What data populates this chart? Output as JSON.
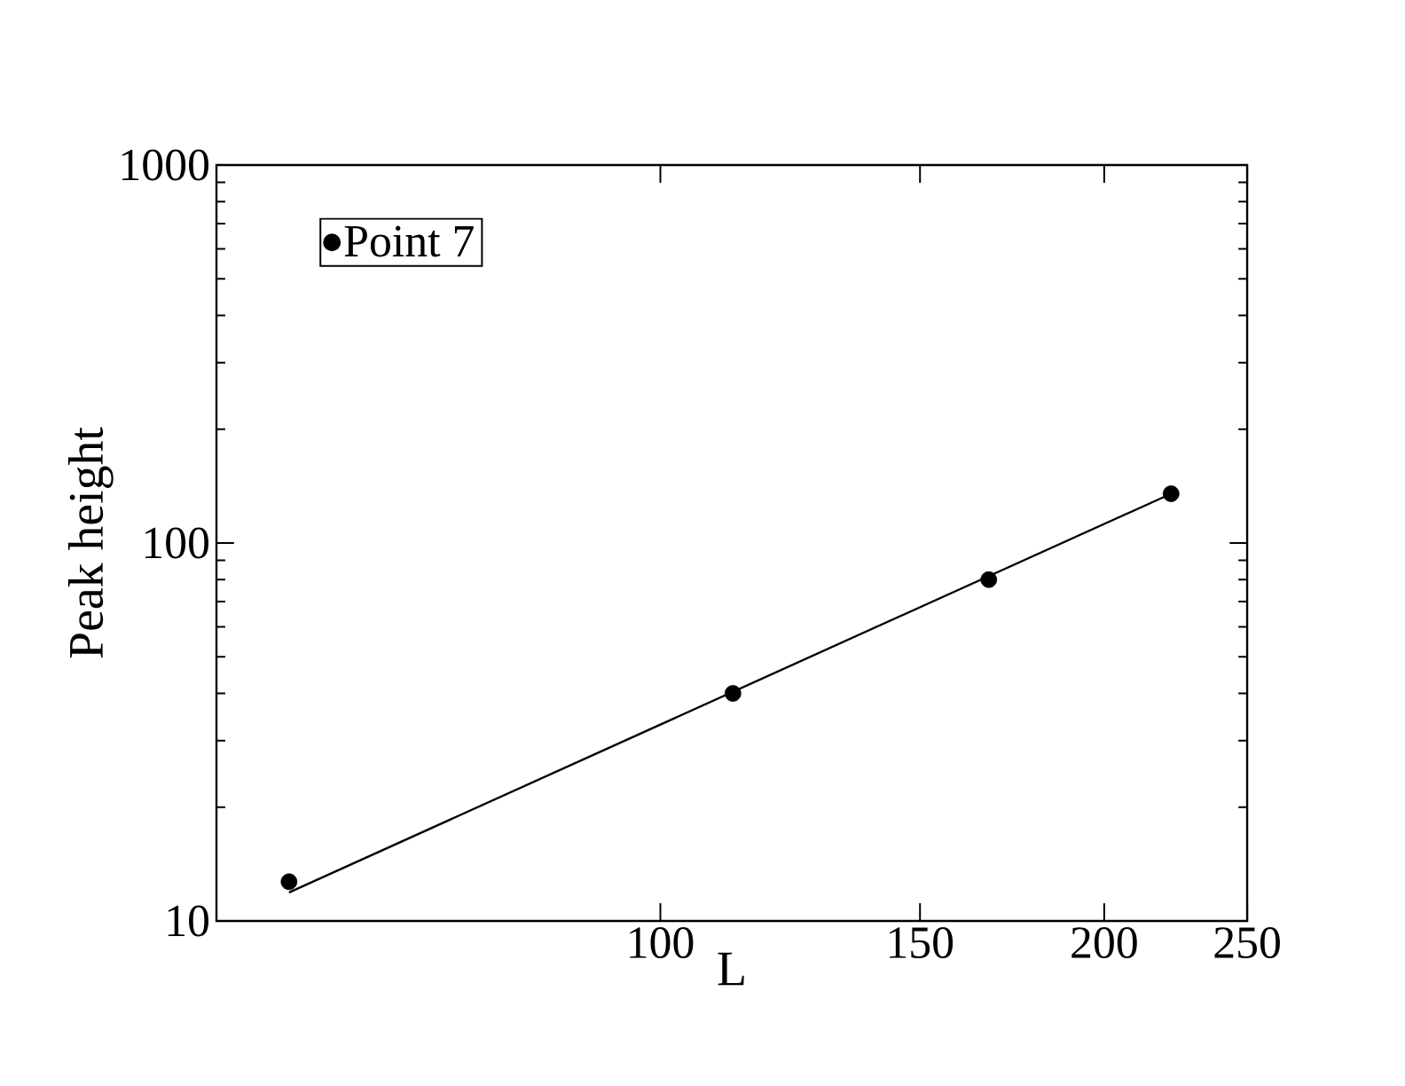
{
  "chart_data": {
    "type": "scatter",
    "xlabel": "L",
    "ylabel": "Peak height",
    "log": "xy",
    "xlim": [
      50,
      250
    ],
    "ylim": [
      10,
      1000
    ],
    "xticks": [
      100,
      150,
      200,
      250
    ],
    "yticks": [
      10,
      100,
      1000
    ],
    "legend": "top left",
    "marker": "circle",
    "series": [
      {
        "name": "Point 7",
        "color": "#000000",
        "x": [
          56,
          112,
          167,
          222
        ],
        "values": [
          12.7,
          40,
          80,
          135
        ]
      },
      {
        "type": "line",
        "marker": "none",
        "color": "#000000",
        "x": [
          56,
          222
        ],
        "values": [
          11.9,
          135
        ]
      }
    ]
  }
}
